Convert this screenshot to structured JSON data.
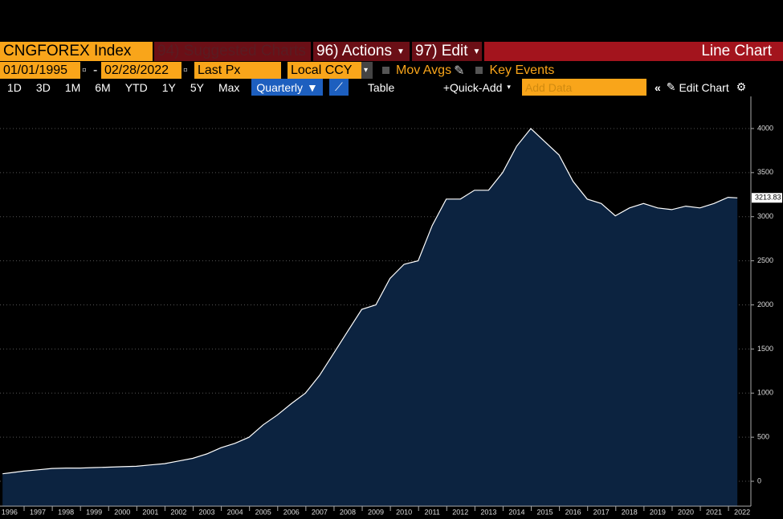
{
  "toolbar": {
    "security": "CNGFOREX Index",
    "suggested": "94) Suggested Charts",
    "actions": "96) Actions",
    "edit": "97) Edit",
    "view": "Line Chart",
    "start_date": "01/01/1995",
    "end_date": "02/28/2022",
    "field": "Last Px",
    "currency": "Local CCY",
    "mov_avgs": "Mov Avgs",
    "key_events": "Key Events",
    "periods": [
      "1D",
      "3D",
      "1M",
      "6M",
      "YTD",
      "1Y",
      "5Y",
      "Max"
    ],
    "frequency": "Quarterly",
    "table": "Table",
    "quick_add": "Quick-Add",
    "add_data": "Add Data",
    "edit_chart": "Edit Chart"
  },
  "chart_data": {
    "type": "area",
    "color": "#0c2340",
    "line_color": "#ffffff",
    "grid": true,
    "x": [
      1995.75,
      1996,
      1996.5,
      1997,
      1997.5,
      1998,
      1998.5,
      1999,
      1999.5,
      2000,
      2000.5,
      2001,
      2001.5,
      2002,
      2002.5,
      2003,
      2003.5,
      2004,
      2004.5,
      2005,
      2005.5,
      2006,
      2006.5,
      2007,
      2007.5,
      2008,
      2008.5,
      2009,
      2009.5,
      2010,
      2010.5,
      2011,
      2011.5,
      2012,
      2012.5,
      2013,
      2013.5,
      2014,
      2014.5,
      2015,
      2015.5,
      2016,
      2016.5,
      2017,
      2017.5,
      2018,
      2018.5,
      2019,
      2019.5,
      2020,
      2020.5,
      2021,
      2021.5,
      2021.83
    ],
    "values": [
      85,
      95,
      115,
      130,
      145,
      150,
      150,
      155,
      160,
      165,
      170,
      185,
      200,
      230,
      260,
      310,
      380,
      430,
      500,
      640,
      750,
      880,
      1000,
      1200,
      1450,
      1700,
      1950,
      2000,
      2300,
      2460,
      2500,
      2900,
      3200,
      3200,
      3300,
      3300,
      3500,
      3800,
      4000,
      3850,
      3700,
      3400,
      3200,
      3150,
      3010,
      3100,
      3150,
      3100,
      3080,
      3120,
      3100,
      3150,
      3220,
      3213.83
    ],
    "xlim": [
      1995.66,
      2022.31
    ],
    "xticks": [
      1996,
      1997,
      1998,
      1999,
      2000,
      2001,
      2002,
      2003,
      2004,
      2005,
      2006,
      2007,
      2008,
      2009,
      2010,
      2011,
      2012,
      2013,
      2014,
      2015,
      2016,
      2017,
      2018,
      2019,
      2020,
      2021,
      2022
    ],
    "ylim": [
      -282,
      4364
    ],
    "yticks": [
      0,
      500,
      1000,
      1500,
      2000,
      2500,
      3000,
      3500,
      4000
    ]
  }
}
